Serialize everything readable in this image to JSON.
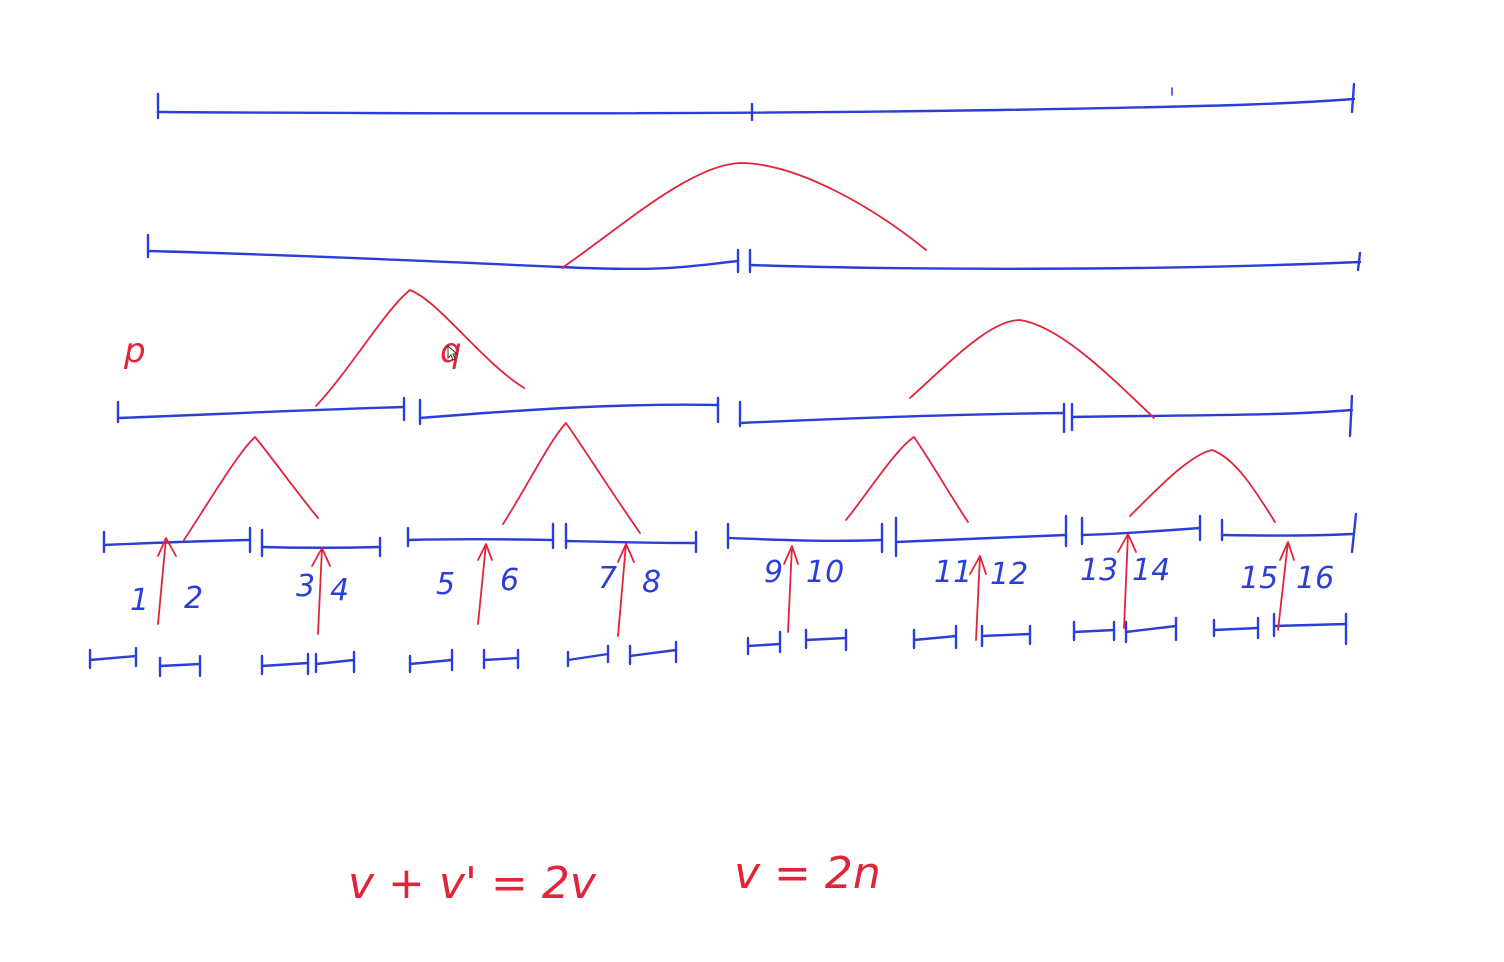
{
  "leaf_labels": [
    "1",
    "2",
    "3",
    "4",
    "5",
    "6",
    "7",
    "8",
    "9",
    "10",
    "11",
    "12",
    "13",
    "14",
    "15",
    "16"
  ],
  "node_labels": {
    "p": "p",
    "q": "q"
  },
  "formulas": {
    "left": "v + v' = 2v",
    "right": "v = 2n"
  },
  "colors": {
    "segment_ink": "#2b3fd8",
    "annotation_ink": "#e0243a",
    "background": "#ffffff"
  }
}
